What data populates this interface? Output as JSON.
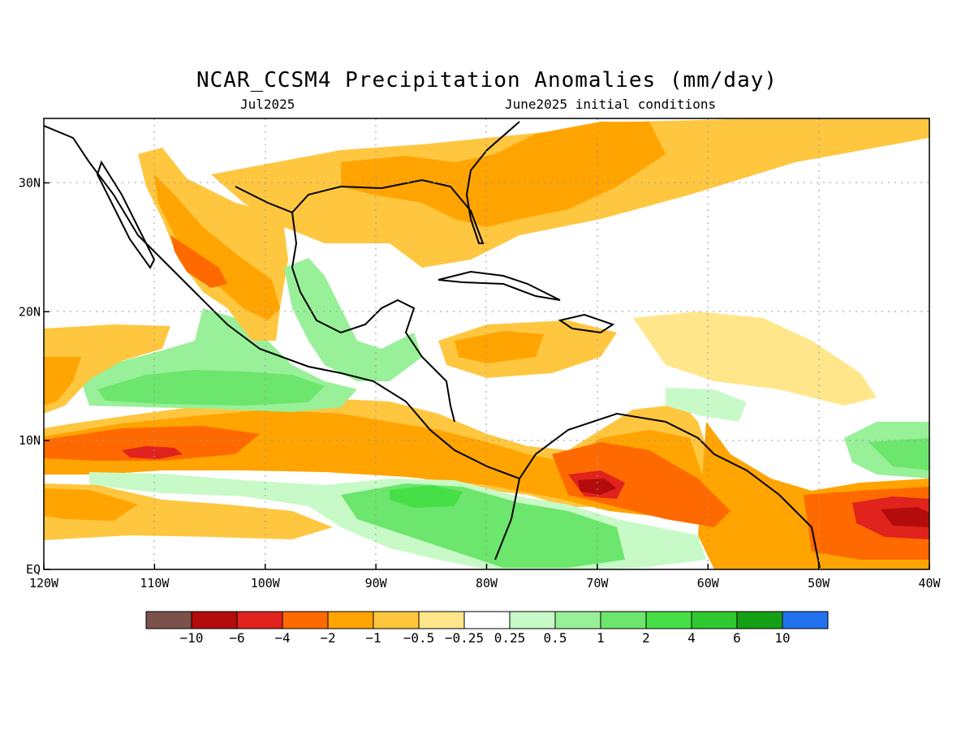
{
  "title": "NCAR_CCSM4 Precipitation Anomalies (mm/day)",
  "subtitle_left": "Jul2025",
  "subtitle_right": "June2025 initial conditions",
  "map": {
    "lon_range": [
      -120,
      -40
    ],
    "lat_range": [
      0,
      35
    ],
    "gridlines": "dotted",
    "x_ticks": [
      "120W",
      "110W",
      "100W",
      "90W",
      "80W",
      "70W",
      "60W",
      "50W",
      "40W"
    ],
    "y_ticks": [
      "EQ",
      "10N",
      "20N",
      "30N"
    ]
  },
  "colorbar": {
    "colors": [
      "#7a5249",
      "#b40c0c",
      "#e0231c",
      "#ff6a00",
      "#ffa400",
      "#ffc640",
      "#ffe68a",
      "#ffffff",
      "#c8fac8",
      "#98f098",
      "#6ce66c",
      "#46e046",
      "#30c830",
      "#14a014",
      "#2272f0"
    ],
    "labels": [
      "−10",
      "−6",
      "−4",
      "−2",
      "−1",
      "−0.5",
      "−0.25",
      "0.25",
      "0.5",
      "1",
      "2",
      "4",
      "6",
      "10"
    ]
  }
}
